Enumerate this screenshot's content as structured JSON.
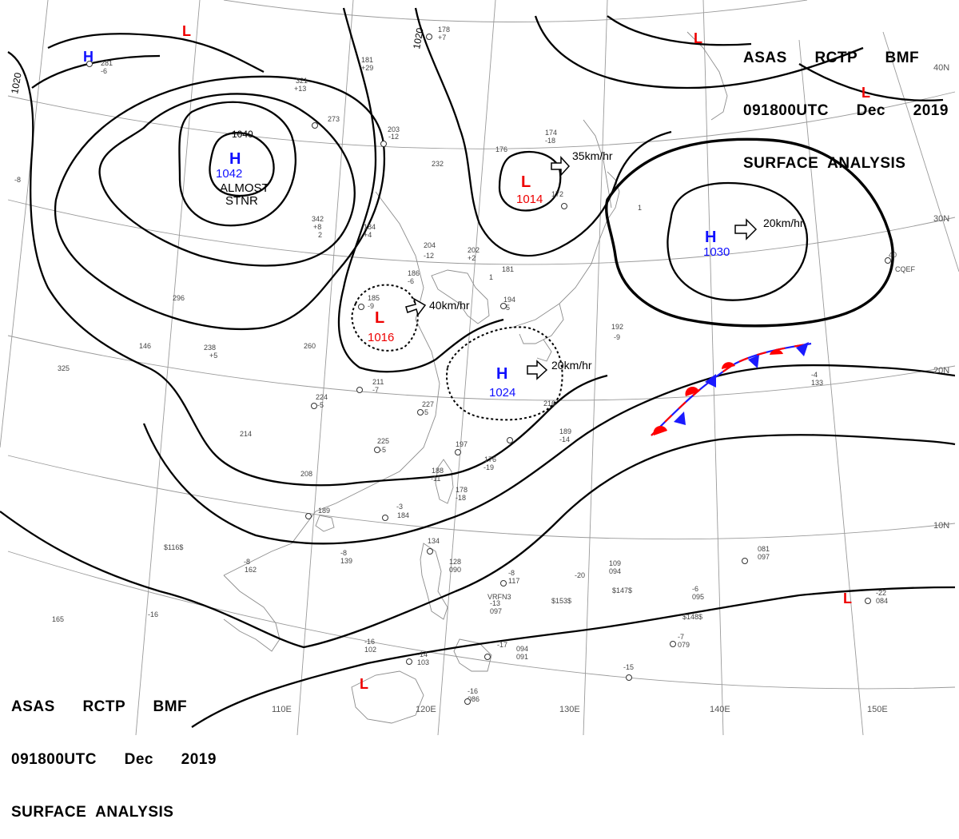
{
  "header": {
    "line1": "ASAS      RCTP      BMF",
    "line2": "091800UTC      Dec      2019",
    "line3": "SURFACE  ANALYSIS"
  },
  "footer": {
    "line1": "ASAS      RCTP      BMF",
    "line2": "091800UTC      Dec      2019",
    "line3": "SURFACE  ANALYSIS"
  },
  "longitudes": [
    "110E",
    "120E",
    "130E",
    "140E",
    "150E"
  ],
  "latitudes": [
    "40N",
    "30N",
    "20N",
    "10N"
  ],
  "isobar_labels": [
    "1040",
    "1020",
    "1020"
  ],
  "pressure_systems": [
    {
      "kind": "H",
      "value": "1042",
      "note1": "ALMOST",
      "note2": "STNR"
    },
    {
      "kind": "H",
      "value": ""
    },
    {
      "kind": "L",
      "value": "1014",
      "motion": "35km/hr"
    },
    {
      "kind": "H",
      "value": "1030",
      "motion": "20km/hr"
    },
    {
      "kind": "L",
      "value": "1016",
      "motion": "40km/hr"
    },
    {
      "kind": "H",
      "value": "1024",
      "motion": "20km/hr"
    },
    {
      "kind": "L",
      "value": ""
    },
    {
      "kind": "L",
      "value": ""
    },
    {
      "kind": "L",
      "value": ""
    },
    {
      "kind": "L",
      "value": ""
    },
    {
      "kind": "L",
      "value": ""
    }
  ],
  "stations": [
    "281",
    "-6",
    "181",
    "+29",
    "178",
    "+7",
    "321",
    "+13",
    "273",
    "203",
    "-12",
    "176",
    "232",
    "174",
    "-18",
    "172",
    "342",
    "+8",
    "2",
    "184",
    "+4",
    "204",
    "-12",
    "202",
    "+2",
    "186",
    "-6",
    "181",
    "185",
    "-9",
    "1",
    "194",
    "-5",
    "192",
    "-9",
    "260",
    "238",
    "+5",
    "146",
    "211",
    "-7",
    "227",
    "-5",
    "224",
    "-5",
    "214",
    "225",
    "-5",
    "197",
    "176",
    "-19",
    "188",
    "-11",
    "178",
    "-18",
    "189",
    "-14",
    "216",
    "208",
    "189",
    "-3",
    "184",
    "-8",
    "162",
    "-8",
    "139",
    "-16",
    "134",
    "128",
    "090",
    "-8",
    "117",
    "-20",
    "109",
    "094",
    "-6",
    "095",
    "-13",
    "097",
    "-22",
    "084",
    "-7",
    "079",
    "-16",
    "102",
    "-14",
    "103",
    "-17",
    "094",
    "091",
    "-16",
    "086",
    "-15",
    "081",
    "097",
    "-4",
    "133",
    "-8",
    "296",
    "325",
    "165",
    "1",
    "CQEF",
    "VRFN3",
    "$153$",
    "$147$",
    "$148$",
    "$116$",
    "40",
    "260"
  ]
}
